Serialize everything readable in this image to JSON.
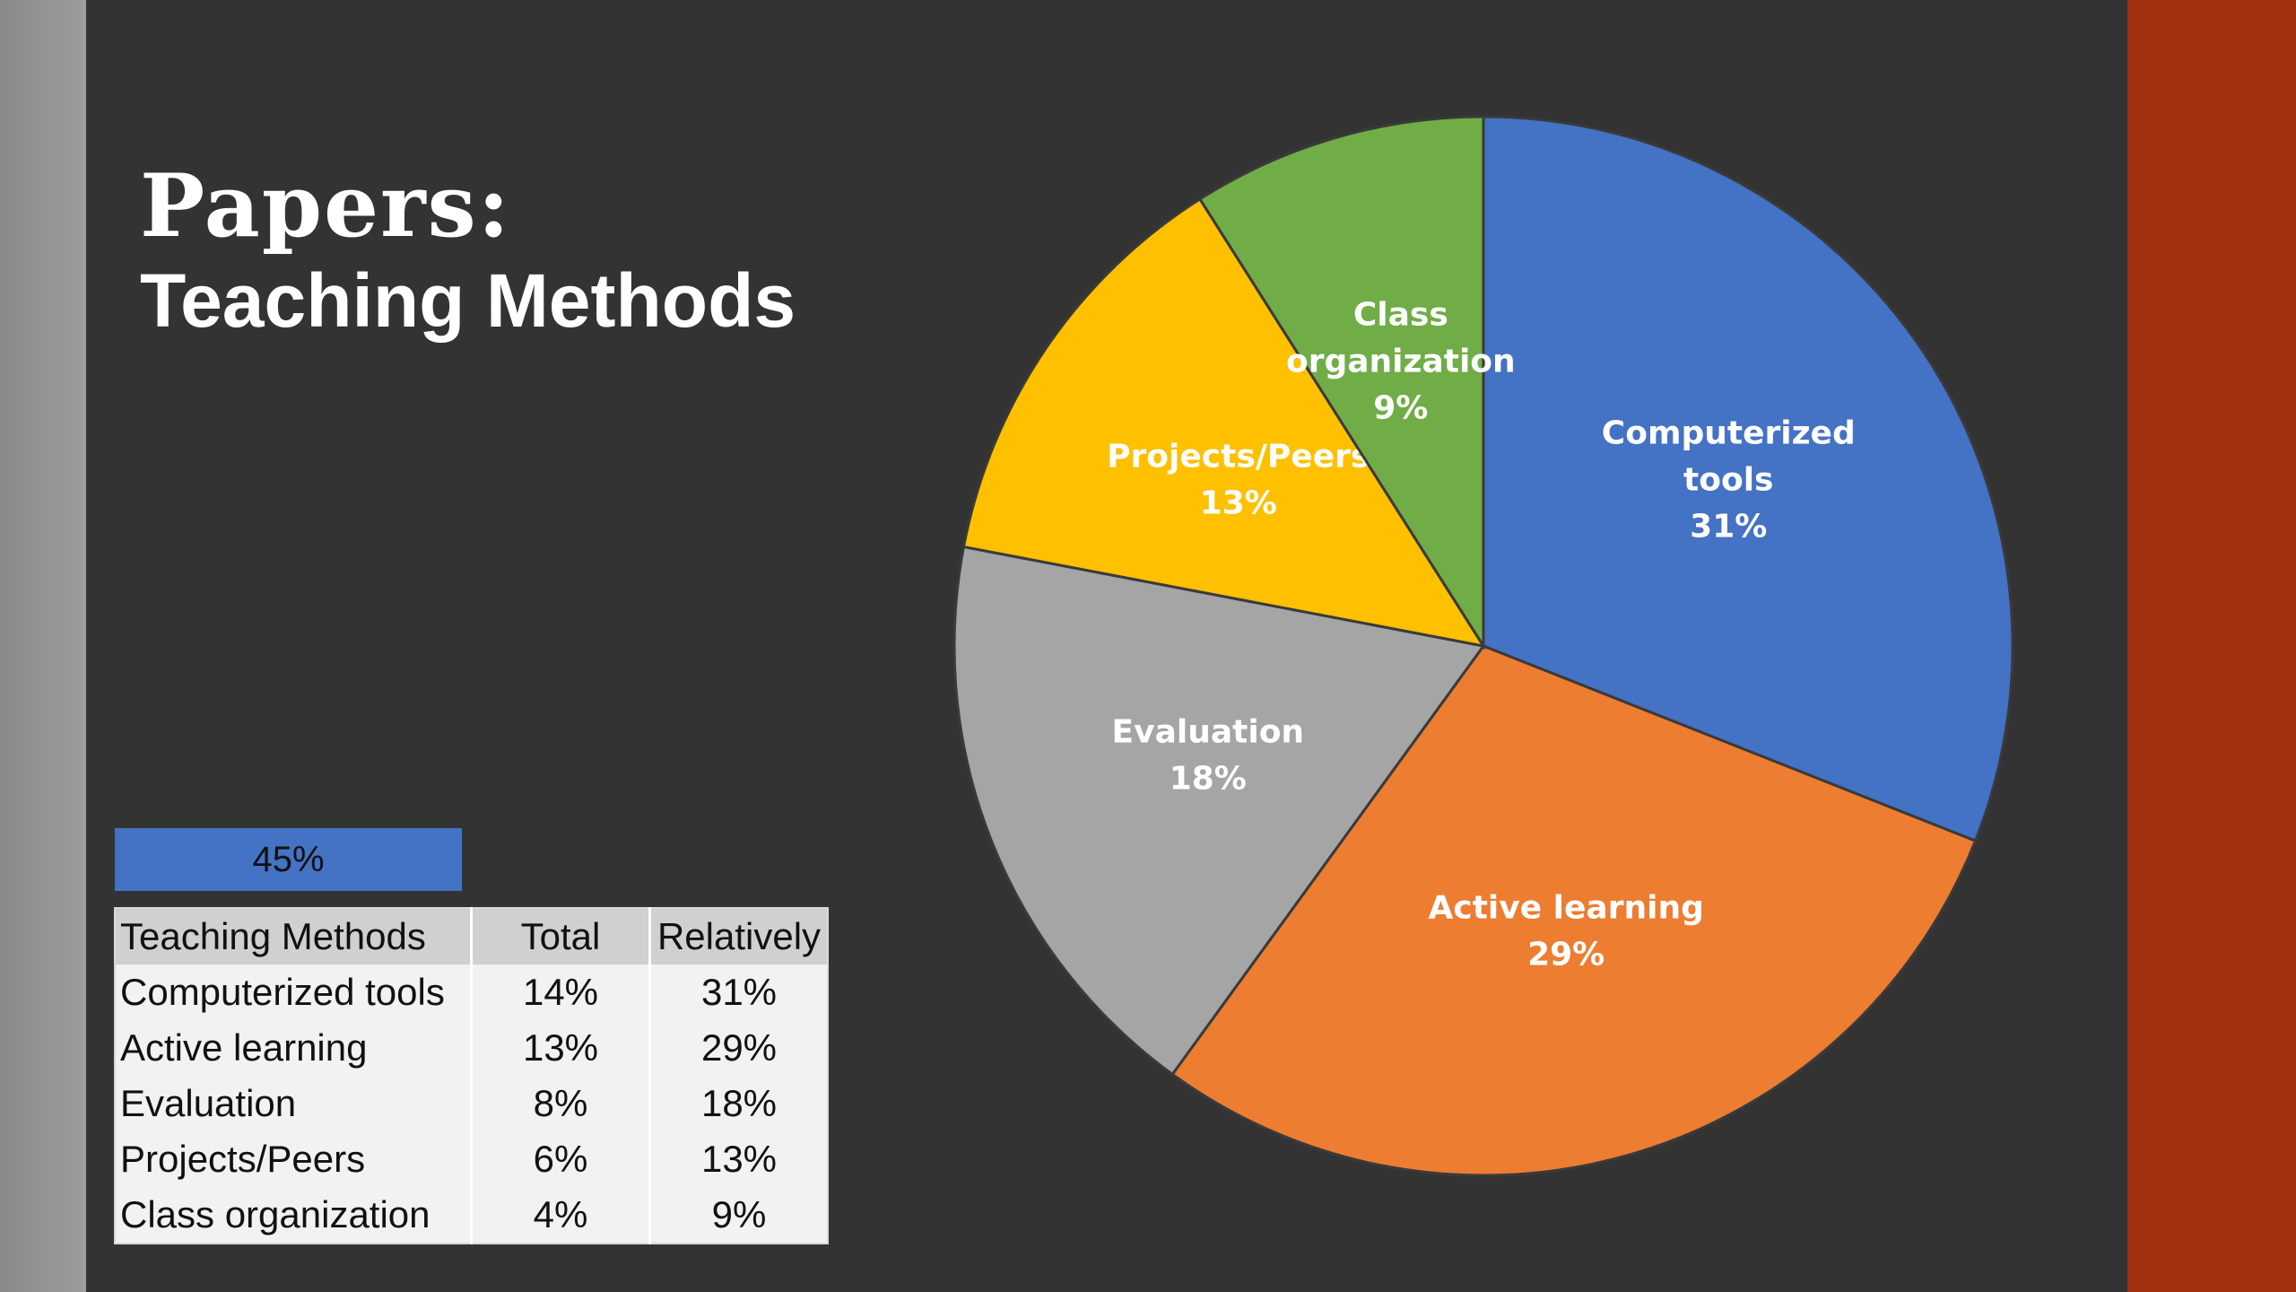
{
  "slide": {
    "title_line1": "Papers:",
    "title_line2": "Teaching Methods",
    "badge_value": "45%",
    "colors": {
      "background": "#333333",
      "accent_right": "#a0300e",
      "left_bar": "#8a8a8a"
    }
  },
  "table": {
    "headers": [
      "Teaching Methods",
      "Total",
      "Relatively"
    ],
    "rows": [
      [
        "Computerized tools",
        "14%",
        "31%"
      ],
      [
        "Active learning",
        "13%",
        "29%"
      ],
      [
        "Evaluation",
        "8%",
        "18%"
      ],
      [
        "Projects/Peers",
        "6%",
        "13%"
      ],
      [
        "Class organization",
        "4%",
        "9%"
      ]
    ]
  },
  "chart_data": {
    "type": "pie",
    "title": "",
    "start": "12 o'clock",
    "direction": "clockwise",
    "slices": [
      {
        "label_lines": [
          "Computerized",
          "tools"
        ],
        "value": 31,
        "value_label": "31%",
        "color": "#4472c4"
      },
      {
        "label_lines": [
          "Active learning"
        ],
        "value": 29,
        "value_label": "29%",
        "color": "#ed7d31"
      },
      {
        "label_lines": [
          "Evaluation"
        ],
        "value": 18,
        "value_label": "18%",
        "color": "#a5a5a5"
      },
      {
        "label_lines": [
          "Projects/Peers"
        ],
        "value": 13,
        "value_label": "13%",
        "color": "#ffc000"
      },
      {
        "label_lines": [
          "Class",
          "organization"
        ],
        "value": 9,
        "value_label": "9%",
        "color": "#70ad47"
      }
    ]
  }
}
